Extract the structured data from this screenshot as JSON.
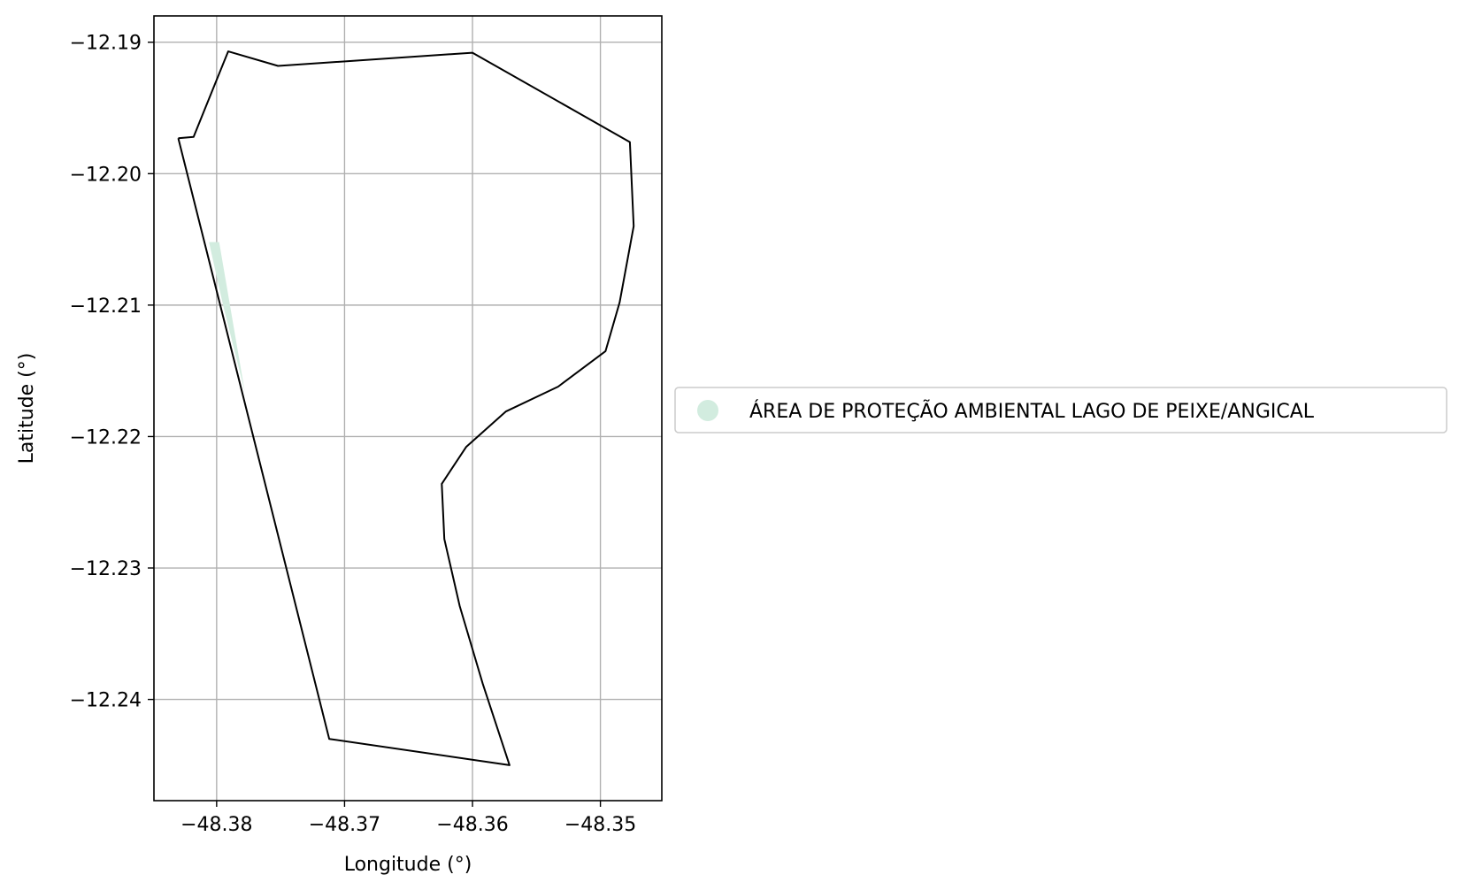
{
  "chart_data": {
    "type": "map",
    "xlabel": "Longitude (°)",
    "ylabel": "Latitude (°)",
    "xlim": [
      -48.3849,
      -48.3452
    ],
    "ylim": [
      -12.2477,
      -12.188
    ],
    "x_ticks": [
      -48.38,
      -48.37,
      -48.36,
      -48.35
    ],
    "y_ticks": [
      -12.19,
      -12.2,
      -12.21,
      -12.22,
      -12.23,
      -12.24
    ],
    "x_tick_labels": [
      "−48.38",
      "−48.37",
      "−48.36",
      "−48.35"
    ],
    "y_tick_labels": [
      "−12.19",
      "−12.20",
      "−12.21",
      "−12.22",
      "−12.23",
      "−12.24"
    ],
    "grid": true,
    "legend_position": "right-center",
    "legend": [
      {
        "label": "ÁREA DE PROTEÇÃO AMBIENTAL LAGO DE PEIXE/ANGICAL",
        "color": "#d2ecdf",
        "marker": "circle"
      }
    ],
    "protected_area_fill": {
      "name": "ÁREA DE PROTEÇÃO AMBIENTAL LAGO DE PEIXE/ANGICAL",
      "color": "#d2ecdf",
      "coordinates": [
        [
          -48.3806,
          -12.2052
        ],
        [
          -48.3798,
          -12.2052
        ],
        [
          -48.3778,
          -12.2166
        ],
        [
          -48.3795,
          -12.21
        ]
      ]
    },
    "boundary": {
      "color": "#000000",
      "coordinates": [
        [
          -48.383,
          -12.1973
        ],
        [
          -48.3818,
          -12.1972
        ],
        [
          -48.3791,
          -12.1907
        ],
        [
          -48.3752,
          -12.1918
        ],
        [
          -48.36,
          -12.1908
        ],
        [
          -48.3477,
          -12.1976
        ],
        [
          -48.3474,
          -12.204
        ],
        [
          -48.3485,
          -12.2098
        ],
        [
          -48.3496,
          -12.2135
        ],
        [
          -48.3533,
          -12.2162
        ],
        [
          -48.3574,
          -12.2181
        ],
        [
          -48.3605,
          -12.2208
        ],
        [
          -48.3624,
          -12.2236
        ],
        [
          -48.3622,
          -12.2278
        ],
        [
          -48.361,
          -12.2329
        ],
        [
          -48.3592,
          -12.2388
        ],
        [
          -48.3571,
          -12.245
        ],
        [
          -48.3712,
          -12.243
        ],
        [
          -48.383,
          -12.1973
        ]
      ]
    }
  }
}
